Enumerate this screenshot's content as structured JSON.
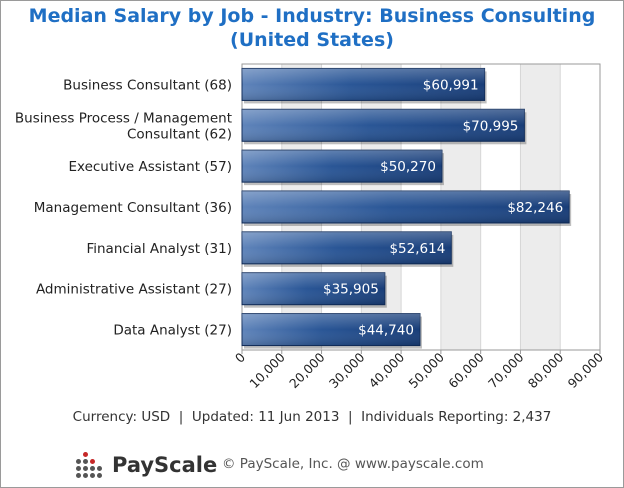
{
  "header": {
    "title_line1": "Median Salary by Job - Industry: Business Consulting",
    "title_line2": "(United States)"
  },
  "chart_data": {
    "type": "bar",
    "orientation": "horizontal",
    "categories": [
      [
        "Business Consultant (68)"
      ],
      [
        "Business Process / Management",
        "Consultant (62)"
      ],
      [
        "Executive Assistant (57)"
      ],
      [
        "Management Consultant (36)"
      ],
      [
        "Financial Analyst (31)"
      ],
      [
        "Administrative Assistant (27)"
      ],
      [
        "Data Analyst (27)"
      ]
    ],
    "values": [
      60991,
      70995,
      50270,
      82246,
      52614,
      35905,
      44740
    ],
    "value_labels": [
      "$60,991",
      "$70,995",
      "$50,270",
      "$82,246",
      "$52,614",
      "$35,905",
      "$44,740"
    ],
    "xlim": [
      0,
      90000
    ],
    "xticks": [
      "0",
      "10,000",
      "20,000",
      "30,000",
      "40,000",
      "50,000",
      "60,000",
      "70,000",
      "80,000",
      "90,000"
    ],
    "grid": "vertical bands",
    "bar_color": "#1f4c8f"
  },
  "footer": {
    "info": "Currency: USD  |  Updated: 11 Jun 2013  |  Individuals Reporting: 2,437"
  },
  "branding": {
    "logo_text": "PayScale",
    "copyright": "© PayScale, Inc. @ www.payscale.com"
  }
}
